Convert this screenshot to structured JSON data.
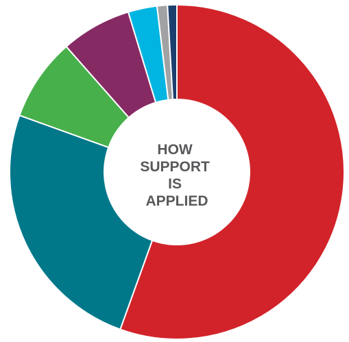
{
  "chart_data": {
    "type": "pie",
    "donut": true,
    "title": "",
    "center_label": [
      "HOW",
      "SUPPORT",
      "IS",
      "APPLIED"
    ],
    "legend": "none",
    "slices": [
      {
        "value": 55.5,
        "color": "#d2232a"
      },
      {
        "value": 25.0,
        "color": "#00788a"
      },
      {
        "value": 8.0,
        "color": "#47b04b"
      },
      {
        "value": 6.8,
        "color": "#862a64"
      },
      {
        "value": 2.8,
        "color": "#00b5e2"
      },
      {
        "value": 1.0,
        "color": "#a0a2a4"
      },
      {
        "value": 0.9,
        "color": "#1c3f6e"
      }
    ]
  }
}
